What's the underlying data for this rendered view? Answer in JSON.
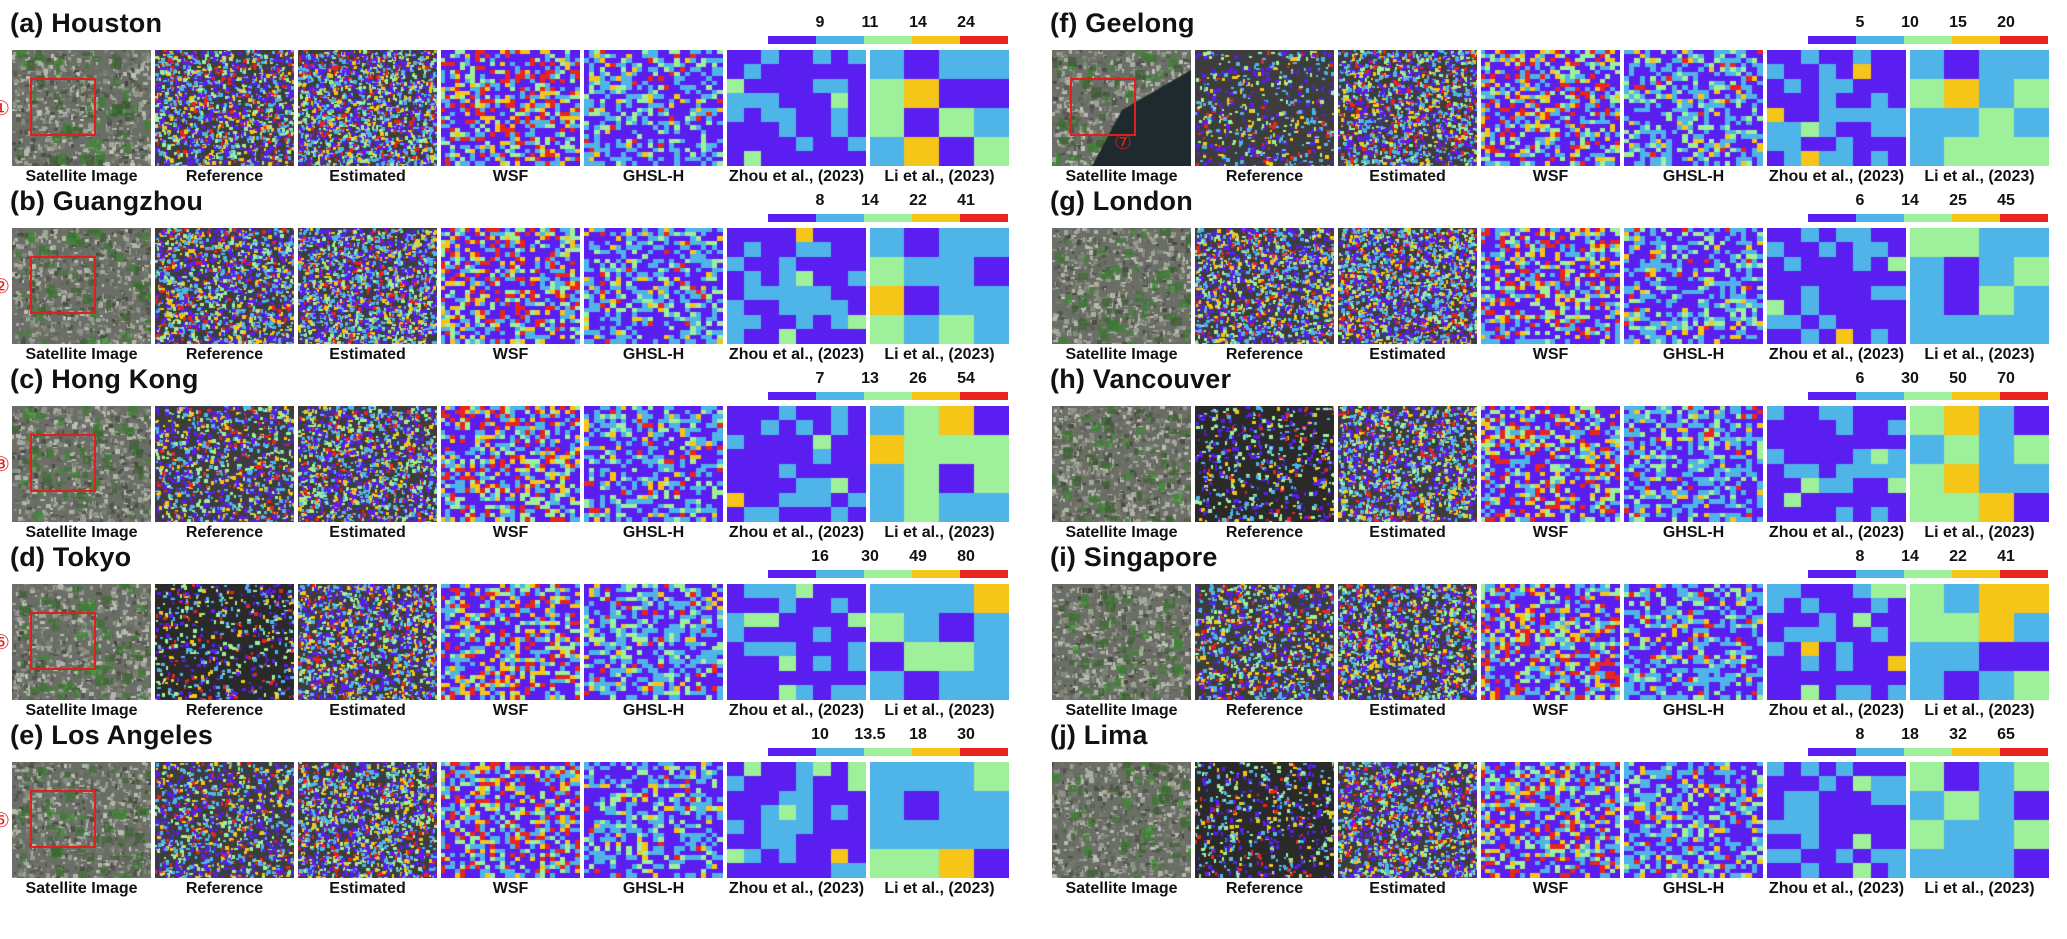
{
  "panels": [
    {
      "id": "a",
      "title": "(a) Houston",
      "ticks": [
        "9",
        "11",
        "14",
        "24"
      ],
      "marker": "①",
      "seed": 11,
      "kind": "dense"
    },
    {
      "id": "b",
      "title": "(b) Guangzhou",
      "ticks": [
        "8",
        "14",
        "22",
        "41"
      ],
      "marker": "②",
      "seed": 23,
      "kind": "dense"
    },
    {
      "id": "c",
      "title": "(c) Hong Kong",
      "ticks": [
        "7",
        "13",
        "26",
        "54"
      ],
      "marker": "③",
      "seed": 37,
      "kind": "mid"
    },
    {
      "id": "d",
      "title": "(d) Tokyo",
      "ticks": [
        "16",
        "30",
        "49",
        "80"
      ],
      "marker": "⑤",
      "seed": 41,
      "kind": "sparse"
    },
    {
      "id": "e",
      "title": "(e) Los Angeles",
      "ticks": [
        "10",
        "13.5",
        "18",
        "30"
      ],
      "marker": "⑥",
      "seed": 53,
      "kind": "mid"
    },
    {
      "id": "f",
      "title": "(f) Geelong",
      "ticks": [
        "5",
        "10",
        "15",
        "20"
      ],
      "marker": "⑦",
      "seed": 61,
      "kind": "water"
    },
    {
      "id": "g",
      "title": "(g) London",
      "ticks": [
        "6",
        "14",
        "25",
        "45"
      ],
      "marker": "",
      "seed": 71,
      "kind": "dense"
    },
    {
      "id": "h",
      "title": "(h) Vancouver",
      "ticks": [
        "6",
        "30",
        "50",
        "70"
      ],
      "marker": "",
      "seed": 83,
      "kind": "sparse"
    },
    {
      "id": "i",
      "title": "(i) Singapore",
      "ticks": [
        "8",
        "14",
        "22",
        "41"
      ],
      "marker": "",
      "seed": 97,
      "kind": "mid"
    },
    {
      "id": "j",
      "title": "(j) Lima",
      "ticks": [
        "8",
        "18",
        "32",
        "65"
      ],
      "marker": "",
      "seed": 101,
      "kind": "sparse"
    }
  ],
  "columns": [
    "Satellite Image",
    "Reference",
    "Estimated",
    "WSF",
    "GHSL-H",
    "Zhou et al., (2023)",
    "Li et al., (2023)"
  ],
  "legend_colors": [
    "#5b1ef0",
    "#4fb4e8",
    "#9ef09a",
    "#f5c518",
    "#e8261f"
  ],
  "marker_color": "#e0201c"
}
